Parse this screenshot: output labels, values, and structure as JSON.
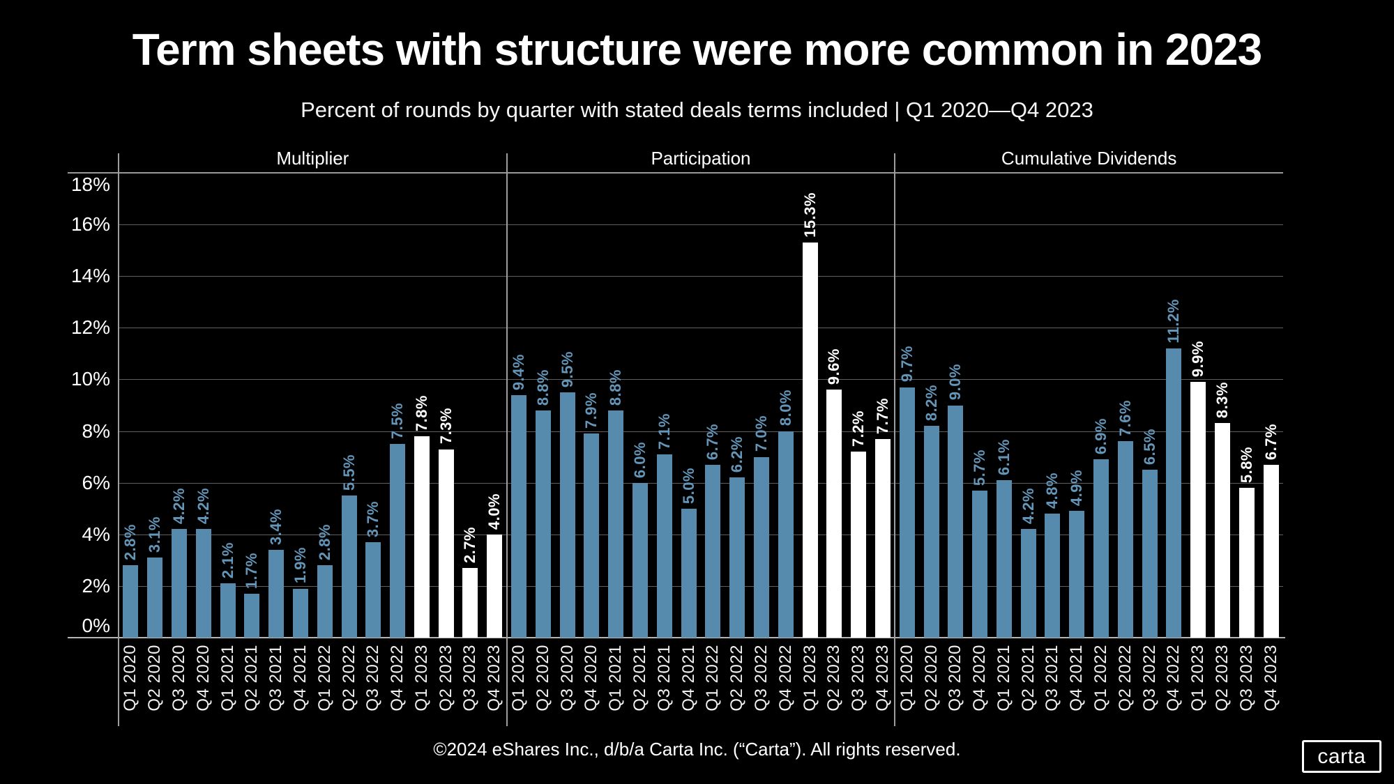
{
  "title": "Term sheets with structure were more common in 2023",
  "subtitle": "Percent of rounds by quarter with stated deals terms included | Q1 2020—Q4 2023",
  "footer": "©2024 eShares Inc., d/b/a Carta Inc. (“Carta”). All rights reserved.",
  "logo_text": "carta",
  "colors": {
    "background": "#000000",
    "bar_blue": "#578bad",
    "bar_white": "#ffffff",
    "value_label_blue": "#6396b9",
    "value_label_white": "#ffffff",
    "grid": "#5f5f5f",
    "top_line": "#999999",
    "axis": "#b5b5b5",
    "separator": "#9e9e9e",
    "text": "#ffffff"
  },
  "chart_data": {
    "type": "bar",
    "title": "Term sheets with structure were more common in 2023",
    "subtitle": "Percent of rounds by quarter with stated deals terms included | Q1 2020—Q4 2023",
    "layout": "three side-by-side panels sharing one y-axis, gridlines on, no legend, value labels rotated 90deg above bars, x tick labels rotated 90deg",
    "categories": [
      "Q1 2020",
      "Q2 2020",
      "Q3 2020",
      "Q4 2020",
      "Q1 2021",
      "Q2 2021",
      "Q3 2021",
      "Q4 2021",
      "Q1 2022",
      "Q2 2022",
      "Q3 2022",
      "Q4 2022",
      "Q1 2023",
      "Q2 2023",
      "Q3 2023",
      "Q4 2023"
    ],
    "series": [
      {
        "name": "Multiplier",
        "values": [
          2.8,
          3.1,
          4.2,
          4.2,
          2.1,
          1.7,
          3.4,
          1.9,
          2.8,
          5.5,
          3.7,
          7.5,
          7.8,
          7.3,
          2.7,
          4.0
        ]
      },
      {
        "name": "Participation",
        "values": [
          9.4,
          8.8,
          9.5,
          7.9,
          8.8,
          6.0,
          7.1,
          5.0,
          6.7,
          6.2,
          7.0,
          8.0,
          15.3,
          9.6,
          7.2,
          7.7
        ]
      },
      {
        "name": "Cumulative Dividends",
        "values": [
          9.7,
          8.2,
          9.0,
          5.7,
          6.1,
          4.2,
          4.8,
          4.9,
          6.9,
          7.6,
          6.5,
          11.2,
          9.9,
          8.3,
          5.8,
          6.7
        ]
      }
    ],
    "highlight_categories": [
      "Q1 2023",
      "Q2 2023",
      "Q3 2023",
      "Q4 2023"
    ],
    "highlight_note": "2023 quarters drawn as white bars, earlier quarters as blue bars",
    "value_label_format": "{value}%",
    "yticks": [
      "0%",
      "2%",
      "4%",
      "6%",
      "8%",
      "10%",
      "12%",
      "14%",
      "16%",
      "18%"
    ],
    "ylim": [
      0,
      18
    ],
    "grid": true,
    "legend": false
  }
}
